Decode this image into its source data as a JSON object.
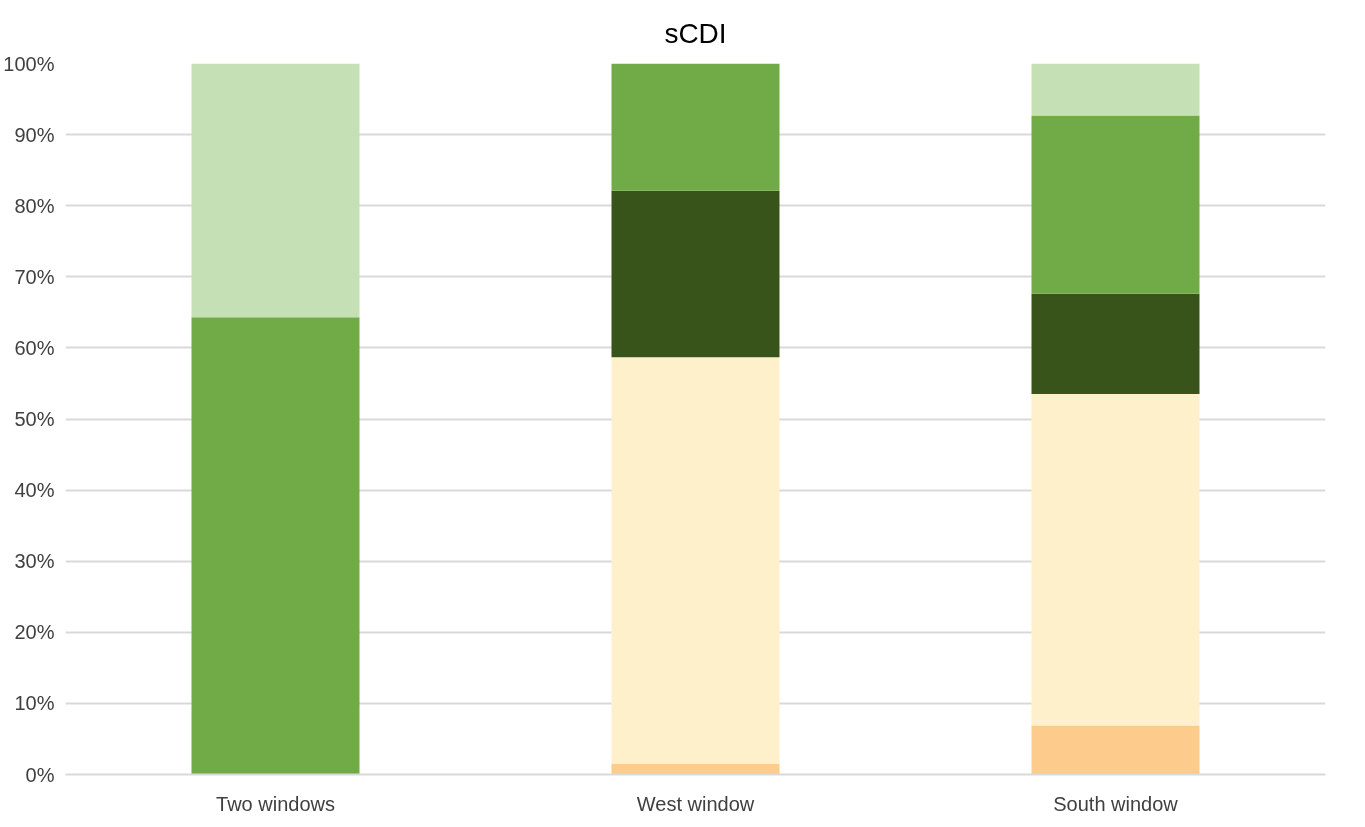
{
  "chart_data": {
    "type": "bar",
    "title": "sCDI",
    "stacked": true,
    "categories": [
      "Two windows",
      "West window",
      "South window"
    ],
    "series": [
      {
        "color": "#fdcb8c",
        "values": [
          0,
          1.5,
          6.9
        ]
      },
      {
        "color": "#fef0cb",
        "values": [
          0,
          57.2,
          46.6
        ]
      },
      {
        "color": "#38541b",
        "values": [
          0,
          23.4,
          14.1
        ]
      },
      {
        "color": "#70ab47",
        "values": [
          64.3,
          17.9,
          25.1
        ]
      },
      {
        "color": "#c5e0b4",
        "values": [
          35.7,
          0,
          7.3
        ]
      }
    ],
    "ylim": [
      0,
      100
    ],
    "yticks": [
      {
        "value": 0,
        "label": "0%"
      },
      {
        "value": 10,
        "label": "10%"
      },
      {
        "value": 20,
        "label": "20%"
      },
      {
        "value": 30,
        "label": "30%"
      },
      {
        "value": 40,
        "label": "40%"
      },
      {
        "value": 50,
        "label": "50%"
      },
      {
        "value": 60,
        "label": "60%"
      },
      {
        "value": 70,
        "label": "70%"
      },
      {
        "value": 80,
        "label": "80%"
      },
      {
        "value": 90,
        "label": "90%"
      },
      {
        "value": 100,
        "label": "100%"
      }
    ],
    "grid": "y"
  }
}
